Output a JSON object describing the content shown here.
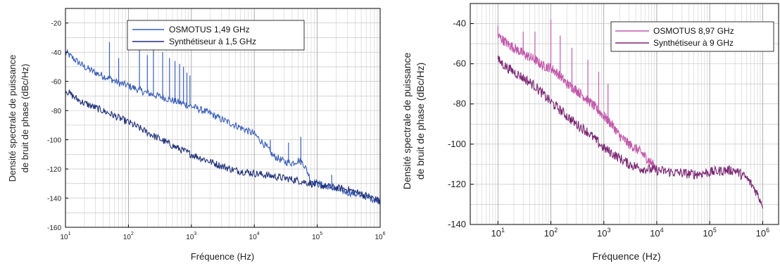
{
  "chart_data": [
    {
      "type": "line",
      "xscale": "log",
      "xlim": [
        10,
        1000000
      ],
      "ylim": [
        -160,
        -10
      ],
      "yticks": [
        -160,
        -140,
        -120,
        -100,
        -80,
        -60,
        -40,
        -20
      ],
      "xticks": [
        10,
        100,
        1000,
        10000,
        100000,
        1000000
      ],
      "xtick_labels": [
        {
          "base": "10",
          "exp": "1"
        },
        {
          "base": "10",
          "exp": "2"
        },
        {
          "base": "10",
          "exp": "3"
        },
        {
          "base": "10",
          "exp": "4"
        },
        {
          "base": "10",
          "exp": "5"
        },
        {
          "base": "10",
          "exp": "6"
        }
      ],
      "xlabel": "Fréquence (Hz)",
      "ylabel_line1": "Densité spectrale de puissance",
      "ylabel_line2": "de bruit de phase (dBc/Hz)",
      "grid": true,
      "legend_position": "top-right",
      "series": [
        {
          "name": "OSMOTUS 1,49 GHz",
          "color": "#3a5fb8",
          "x": [
            10,
            15,
            20,
            30,
            50,
            70,
            100,
            150,
            200,
            300,
            500,
            700,
            1000,
            2000,
            3000,
            5000,
            10000,
            15000,
            20000,
            30000,
            40000,
            50000,
            60000,
            70000,
            80000,
            100000,
            150000,
            200000,
            300000,
            500000,
            1000000
          ],
          "y": [
            -40,
            -46,
            -50,
            -54,
            -58,
            -61,
            -63,
            -66,
            -68,
            -70,
            -73,
            -75,
            -77,
            -82,
            -86,
            -90,
            -96,
            -104,
            -111,
            -115,
            -116,
            -114,
            -116,
            -122,
            -128,
            -130,
            -132,
            -134,
            -136,
            -138,
            -142
          ]
        },
        {
          "name": "Synthétiseur  à 1,5 GHz",
          "color": "#1f2f78",
          "x": [
            10,
            15,
            20,
            30,
            50,
            70,
            100,
            150,
            200,
            300,
            500,
            700,
            1000,
            2000,
            3000,
            5000,
            10000,
            20000,
            50000,
            100000,
            200000,
            300000,
            500000,
            1000000
          ],
          "y": [
            -66,
            -72,
            -75,
            -78,
            -82,
            -85,
            -88,
            -92,
            -95,
            -99,
            -104,
            -107,
            -110,
            -115,
            -118,
            -121,
            -123,
            -125,
            -128,
            -131,
            -133,
            -134,
            -137,
            -142
          ]
        }
      ],
      "spikes": [
        {
          "series": 0,
          "x": 50,
          "y": -33
        },
        {
          "series": 0,
          "x": 70,
          "y": -44
        },
        {
          "series": 0,
          "x": 150,
          "y": -36
        },
        {
          "series": 0,
          "x": 200,
          "y": -42
        },
        {
          "series": 0,
          "x": 250,
          "y": -37
        },
        {
          "series": 0,
          "x": 350,
          "y": -40
        },
        {
          "series": 0,
          "x": 450,
          "y": -44
        },
        {
          "series": 0,
          "x": 550,
          "y": -46
        },
        {
          "series": 0,
          "x": 650,
          "y": -48
        },
        {
          "series": 0,
          "x": 750,
          "y": -50
        },
        {
          "series": 0,
          "x": 850,
          "y": -54
        },
        {
          "series": 0,
          "x": 950,
          "y": -56
        },
        {
          "series": 0,
          "x": 18000,
          "y": -100
        },
        {
          "series": 0,
          "x": 35000,
          "y": -102
        },
        {
          "series": 0,
          "x": 55000,
          "y": -98
        },
        {
          "series": 0,
          "x": 170000,
          "y": -124
        }
      ]
    },
    {
      "type": "line",
      "xscale": "log",
      "xlim": [
        3,
        2000000
      ],
      "ylim": [
        -140,
        -30
      ],
      "yticks": [
        -140,
        -120,
        -100,
        -80,
        -60,
        -40
      ],
      "xticks": [
        10,
        100,
        1000,
        10000,
        100000,
        1000000
      ],
      "xtick_labels": [
        {
          "base": "10",
          "exp": "1"
        },
        {
          "base": "10",
          "exp": "2"
        },
        {
          "base": "10",
          "exp": "3"
        },
        {
          "base": "10",
          "exp": "4"
        },
        {
          "base": "10",
          "exp": "5"
        },
        {
          "base": "10",
          "exp": "6"
        }
      ],
      "xlabel": "Fréquence (Hz)",
      "ylabel_line1": "Densité spectrale de puissance",
      "ylabel_line2": "de bruit de phase (dBc/Hz)",
      "grid": true,
      "legend_position": "top-right",
      "series": [
        {
          "name": "OSMOTUS 8,97 GHz",
          "color": "#c25aab",
          "x": [
            10,
            15,
            20,
            30,
            50,
            70,
            100,
            150,
            200,
            300,
            500,
            700,
            1000,
            1500,
            2000,
            3000,
            5000,
            7000,
            10000
          ],
          "y": [
            -46,
            -50,
            -52,
            -55,
            -58,
            -61,
            -62,
            -66,
            -70,
            -73,
            -78,
            -82,
            -86,
            -91,
            -96,
            -100,
            -104,
            -108,
            -112
          ]
        },
        {
          "name": "Synthétiseur à 9 GHz",
          "color": "#7a2572",
          "x": [
            10,
            15,
            20,
            30,
            50,
            70,
            100,
            150,
            200,
            300,
            500,
            700,
            1000,
            2000,
            3000,
            5000,
            10000,
            20000,
            50000,
            100000,
            200000,
            300000,
            500000,
            700000,
            1000000
          ],
          "y": [
            -58,
            -62,
            -64,
            -67,
            -71,
            -75,
            -79,
            -83,
            -86,
            -90,
            -94,
            -98,
            -102,
            -107,
            -110,
            -112,
            -113,
            -114,
            -115,
            -114,
            -113,
            -113,
            -117,
            -122,
            -130
          ]
        }
      ],
      "spikes": [
        {
          "series": 0,
          "x": 10,
          "y": -41
        },
        {
          "series": 0,
          "x": 30,
          "y": -44
        },
        {
          "series": 0,
          "x": 50,
          "y": -44
        },
        {
          "series": 0,
          "x": 100,
          "y": -38
        },
        {
          "series": 0,
          "x": 150,
          "y": -46
        },
        {
          "series": 0,
          "x": 250,
          "y": -52
        },
        {
          "series": 0,
          "x": 500,
          "y": -58
        },
        {
          "series": 0,
          "x": 800,
          "y": -64
        },
        {
          "series": 0,
          "x": 1200,
          "y": -70
        }
      ]
    }
  ]
}
